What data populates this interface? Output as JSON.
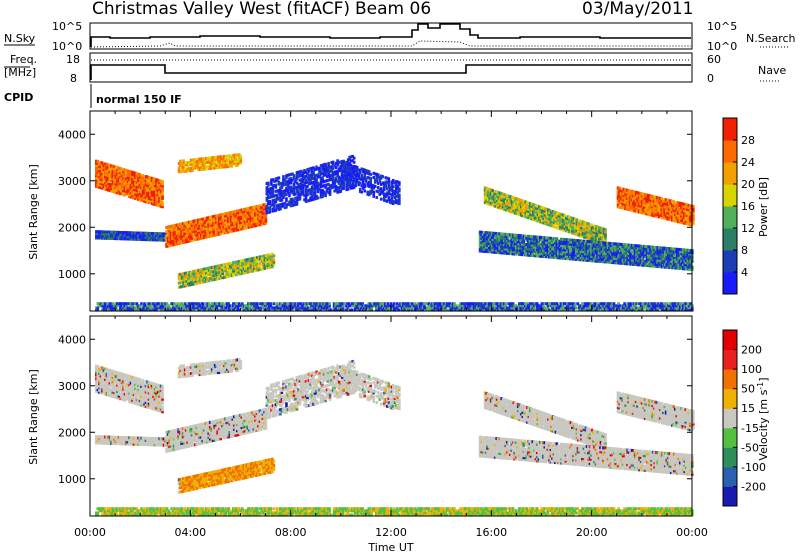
{
  "header": {
    "station": "Christmas Valley West (fitACF)",
    "beam": "Beam 06",
    "date": "03/May/2011"
  },
  "summary_panels": {
    "nsky_label": "N.Sky",
    "nsky_ticks": [
      "10^5",
      "10^0"
    ],
    "nsearch_label": "N.Search",
    "nsearch_ticks": [
      "10^5",
      "10^0"
    ],
    "freq_label_1": "Freq.",
    "freq_label_2": "[MHz]",
    "freq_ticks": [
      "18",
      "8"
    ],
    "nave_label": "Nave",
    "nave_ticks": [
      "60",
      "0"
    ],
    "cpid_label": "CPID",
    "cpid_value": "normal 150 IF"
  },
  "chart_data": [
    {
      "type": "heatmap",
      "title": "",
      "xlabel": "",
      "ylabel": "Slant Range [km]",
      "xlim": [
        0,
        24
      ],
      "ylim": [
        200,
        4500
      ],
      "yticks": [
        "1000",
        "2000",
        "3000",
        "4000"
      ],
      "colorbar": {
        "label": "Power [dB]",
        "ticks": [
          "4",
          "8",
          "12",
          "16",
          "20",
          "24",
          "28"
        ],
        "colors": [
          "#1a1aff",
          "#1c3fb8",
          "#2a7f66",
          "#52b05a",
          "#d7d400",
          "#f2a000",
          "#ff6a00",
          "#f02000"
        ]
      }
    },
    {
      "type": "heatmap",
      "title": "",
      "xlabel": "Time UT",
      "ylabel": "Slant Range [km]",
      "xlim": [
        0,
        24
      ],
      "ylim": [
        200,
        4500
      ],
      "yticks": [
        "1000",
        "2000",
        "3000",
        "4000"
      ],
      "xticks": [
        "00:00",
        "04:00",
        "08:00",
        "12:00",
        "16:00",
        "20:00",
        "00:00"
      ],
      "colorbar": {
        "label": "Velocity [m s^-1]",
        "ticks": [
          "200",
          "100",
          "50",
          "15",
          "-15",
          "-50",
          "-100",
          "-200"
        ],
        "colors": [
          "#1a1ab0",
          "#2a60b0",
          "#2f8f5a",
          "#55c040",
          "#c8c8c0",
          "#f0b000",
          "#f07000",
          "#e82020",
          "#e00000"
        ]
      }
    }
  ]
}
